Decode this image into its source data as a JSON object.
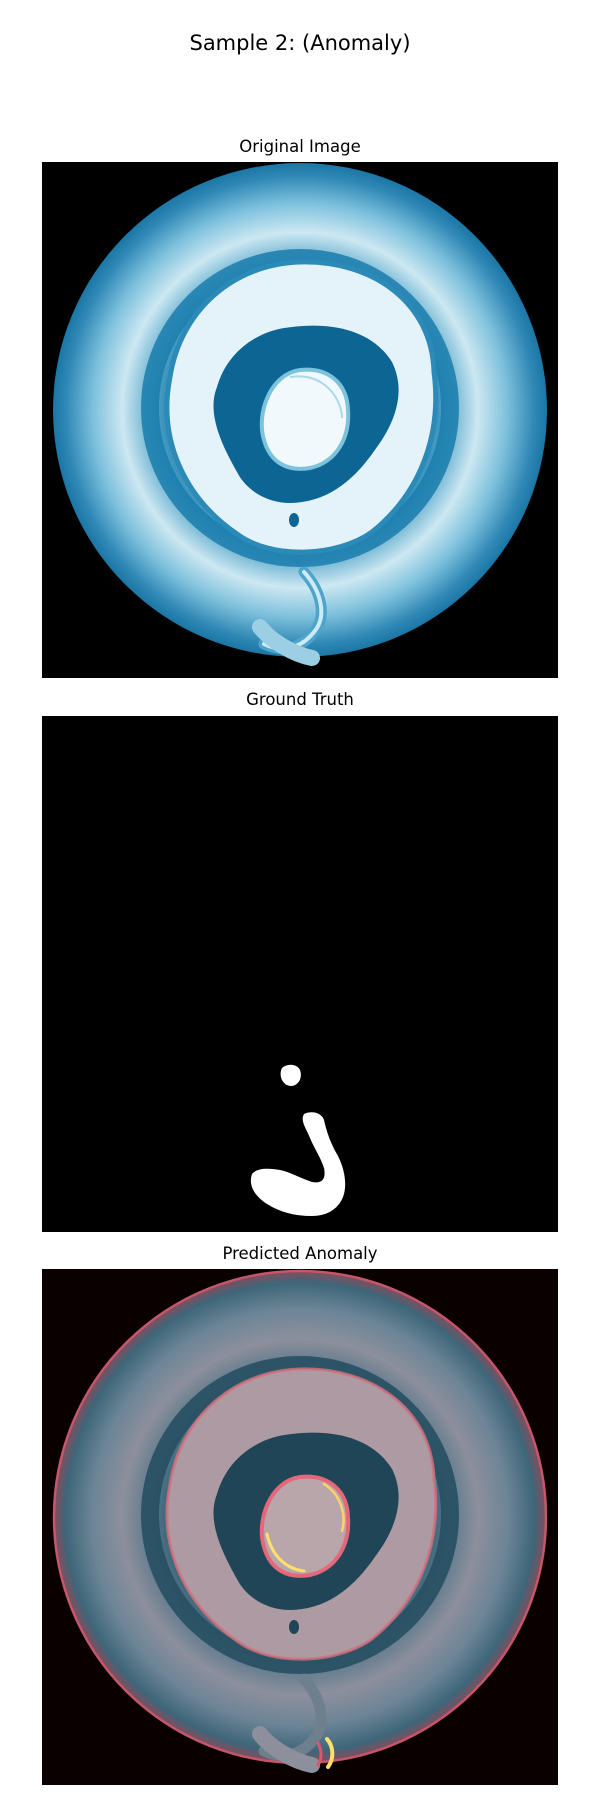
{
  "figure": {
    "title": "Sample 2: (Anomaly)"
  },
  "panels": [
    {
      "title": "Original Image",
      "colormap": "blue-white"
    },
    {
      "title": "Ground Truth",
      "colormap": "binary-mask"
    },
    {
      "title": "Predicted Anomaly",
      "colormap": "heatmap-overlay"
    }
  ],
  "colors": {
    "background": "#000000",
    "sample_deep": "#0a5f8c",
    "sample_mid": "#3d93bd",
    "sample_light": "#bfe3f0",
    "mask": "#ffffff",
    "heat_hot": "#ffe06b",
    "heat_warm": "#e0556a"
  }
}
